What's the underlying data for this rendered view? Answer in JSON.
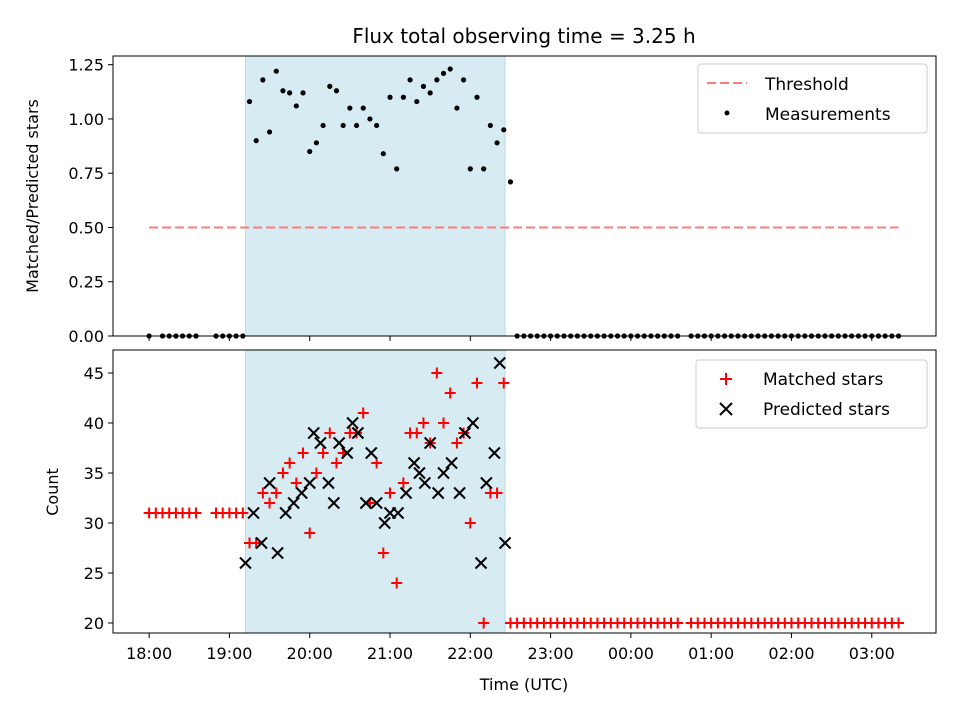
{
  "chart_data": [
    {
      "type": "scatter",
      "title": "Flux total observing time = 3.25 h",
      "xlabel": "",
      "ylabel": "Matched/Predicted stars",
      "xlim": [
        "17:33",
        "03:48"
      ],
      "ylim": [
        0,
        1.29
      ],
      "yticks": [
        "0.00",
        "0.25",
        "0.50",
        "0.75",
        "1.00",
        "1.25"
      ],
      "shaded_interval": [
        "19:12",
        "22:26"
      ],
      "threshold": {
        "label": "Threshold",
        "value": 0.5,
        "x_range": [
          "18:00",
          "03:20"
        ],
        "color": "#ff7b7b"
      },
      "legend_position": "upper right",
      "series": [
        {
          "name": "Measurements",
          "color": "#000000",
          "marker": "dot",
          "points": [
            [
              "18:00",
              0
            ],
            [
              "18:10",
              0
            ],
            [
              "18:15",
              0
            ],
            [
              "18:20",
              0
            ],
            [
              "18:25",
              0
            ],
            [
              "18:30",
              0
            ],
            [
              "18:35",
              0
            ],
            [
              "18:50",
              0
            ],
            [
              "18:55",
              0
            ],
            [
              "19:00",
              0
            ],
            [
              "19:05",
              0
            ],
            [
              "19:10",
              0
            ],
            [
              "19:15",
              1.08
            ],
            [
              "19:20",
              0.9
            ],
            [
              "19:25",
              1.18
            ],
            [
              "19:30",
              0.94
            ],
            [
              "19:35",
              1.22
            ],
            [
              "19:40",
              1.13
            ],
            [
              "19:45",
              1.12
            ],
            [
              "19:50",
              1.06
            ],
            [
              "19:55",
              1.12
            ],
            [
              "20:00",
              0.85
            ],
            [
              "20:05",
              0.89
            ],
            [
              "20:10",
              0.97
            ],
            [
              "20:15",
              1.15
            ],
            [
              "20:20",
              1.13
            ],
            [
              "20:25",
              0.97
            ],
            [
              "20:30",
              1.05
            ],
            [
              "20:35",
              0.97
            ],
            [
              "20:40",
              1.05
            ],
            [
              "20:45",
              1.0
            ],
            [
              "20:50",
              0.97
            ],
            [
              "20:55",
              0.84
            ],
            [
              "21:00",
              1.1
            ],
            [
              "21:05",
              0.77
            ],
            [
              "21:10",
              1.1
            ],
            [
              "21:15",
              1.18
            ],
            [
              "21:20",
              1.08
            ],
            [
              "21:25",
              1.15
            ],
            [
              "21:30",
              1.12
            ],
            [
              "21:35",
              1.18
            ],
            [
              "21:40",
              1.21
            ],
            [
              "21:45",
              1.23
            ],
            [
              "21:50",
              1.05
            ],
            [
              "21:55",
              1.18
            ],
            [
              "22:00",
              0.77
            ],
            [
              "22:05",
              1.1
            ],
            [
              "22:10",
              0.77
            ],
            [
              "22:15",
              0.97
            ],
            [
              "22:20",
              0.89
            ],
            [
              "22:25",
              0.95
            ],
            [
              "22:30",
              0.71
            ],
            [
              "22:35",
              0
            ],
            [
              "22:40",
              0
            ],
            [
              "22:45",
              0
            ],
            [
              "22:50",
              0
            ],
            [
              "22:55",
              0
            ],
            [
              "23:00",
              0
            ],
            [
              "23:05",
              0
            ],
            [
              "23:10",
              0
            ],
            [
              "23:15",
              0
            ],
            [
              "23:20",
              0
            ],
            [
              "23:25",
              0
            ],
            [
              "23:30",
              0
            ],
            [
              "23:35",
              0
            ],
            [
              "23:40",
              0
            ],
            [
              "23:45",
              0
            ],
            [
              "23:50",
              0
            ],
            [
              "23:55",
              0
            ],
            [
              "00:00",
              0
            ],
            [
              "00:05",
              0
            ],
            [
              "00:10",
              0
            ],
            [
              "00:15",
              0
            ],
            [
              "00:20",
              0
            ],
            [
              "00:25",
              0
            ],
            [
              "00:30",
              0
            ],
            [
              "00:35",
              0
            ],
            [
              "00:45",
              0
            ],
            [
              "00:50",
              0
            ],
            [
              "00:55",
              0
            ],
            [
              "01:00",
              0
            ],
            [
              "01:05",
              0
            ],
            [
              "01:10",
              0
            ],
            [
              "01:15",
              0
            ],
            [
              "01:20",
              0
            ],
            [
              "01:25",
              0
            ],
            [
              "01:30",
              0
            ],
            [
              "01:35",
              0
            ],
            [
              "01:40",
              0
            ],
            [
              "01:45",
              0
            ],
            [
              "01:50",
              0
            ],
            [
              "01:55",
              0
            ],
            [
              "02:00",
              0
            ],
            [
              "02:05",
              0
            ],
            [
              "02:10",
              0
            ],
            [
              "02:15",
              0
            ],
            [
              "02:20",
              0
            ],
            [
              "02:25",
              0
            ],
            [
              "02:30",
              0
            ],
            [
              "02:35",
              0
            ],
            [
              "02:40",
              0
            ],
            [
              "02:45",
              0
            ],
            [
              "02:50",
              0
            ],
            [
              "02:55",
              0
            ],
            [
              "03:00",
              0
            ],
            [
              "03:05",
              0
            ],
            [
              "03:10",
              0
            ],
            [
              "03:15",
              0
            ],
            [
              "03:20",
              0
            ]
          ]
        }
      ]
    },
    {
      "type": "scatter",
      "title": "",
      "xlabel": "Time (UTC)",
      "ylabel": "Count",
      "xlim": [
        "17:33",
        "03:48"
      ],
      "ylim": [
        19,
        47.3
      ],
      "yticks": [
        "20",
        "25",
        "30",
        "35",
        "40",
        "45"
      ],
      "xticks": [
        "18:00",
        "19:00",
        "20:00",
        "21:00",
        "22:00",
        "23:00",
        "00:00",
        "01:00",
        "02:00",
        "03:00"
      ],
      "shaded_interval": [
        "19:12",
        "22:26"
      ],
      "legend_position": "upper right",
      "series": [
        {
          "name": "Matched stars",
          "color": "#ff0000",
          "marker": "plus",
          "points": [
            [
              "18:00",
              31
            ],
            [
              "18:05",
              31
            ],
            [
              "18:10",
              31
            ],
            [
              "18:15",
              31
            ],
            [
              "18:20",
              31
            ],
            [
              "18:25",
              31
            ],
            [
              "18:30",
              31
            ],
            [
              "18:35",
              31
            ],
            [
              "18:50",
              31
            ],
            [
              "18:55",
              31
            ],
            [
              "19:00",
              31
            ],
            [
              "19:05",
              31
            ],
            [
              "19:10",
              31
            ],
            [
              "19:15",
              28
            ],
            [
              "19:20",
              28
            ],
            [
              "19:25",
              33
            ],
            [
              "19:30",
              32
            ],
            [
              "19:35",
              33
            ],
            [
              "19:40",
              35
            ],
            [
              "19:45",
              36
            ],
            [
              "19:50",
              34
            ],
            [
              "19:55",
              37
            ],
            [
              "20:00",
              29
            ],
            [
              "20:05",
              35
            ],
            [
              "20:10",
              37
            ],
            [
              "20:15",
              39
            ],
            [
              "20:20",
              36
            ],
            [
              "20:25",
              37
            ],
            [
              "20:30",
              39
            ],
            [
              "20:35",
              39
            ],
            [
              "20:40",
              41
            ],
            [
              "20:45",
              32
            ],
            [
              "20:50",
              36
            ],
            [
              "20:55",
              27
            ],
            [
              "21:00",
              33
            ],
            [
              "21:05",
              24
            ],
            [
              "21:10",
              34
            ],
            [
              "21:15",
              39
            ],
            [
              "21:20",
              39
            ],
            [
              "21:25",
              40
            ],
            [
              "21:30",
              38
            ],
            [
              "21:35",
              45
            ],
            [
              "21:40",
              40
            ],
            [
              "21:45",
              43
            ],
            [
              "21:50",
              38
            ],
            [
              "21:55",
              39
            ],
            [
              "22:00",
              30
            ],
            [
              "22:05",
              44
            ],
            [
              "22:10",
              20
            ],
            [
              "22:15",
              33
            ],
            [
              "22:20",
              33
            ],
            [
              "22:25",
              44
            ],
            [
              "22:30",
              20
            ],
            [
              "22:35",
              20
            ],
            [
              "22:40",
              20
            ],
            [
              "22:45",
              20
            ],
            [
              "22:50",
              20
            ],
            [
              "22:55",
              20
            ],
            [
              "23:00",
              20
            ],
            [
              "23:05",
              20
            ],
            [
              "23:10",
              20
            ],
            [
              "23:15",
              20
            ],
            [
              "23:20",
              20
            ],
            [
              "23:25",
              20
            ],
            [
              "23:30",
              20
            ],
            [
              "23:35",
              20
            ],
            [
              "23:40",
              20
            ],
            [
              "23:45",
              20
            ],
            [
              "23:50",
              20
            ],
            [
              "23:55",
              20
            ],
            [
              "00:00",
              20
            ],
            [
              "00:05",
              20
            ],
            [
              "00:10",
              20
            ],
            [
              "00:15",
              20
            ],
            [
              "00:20",
              20
            ],
            [
              "00:25",
              20
            ],
            [
              "00:30",
              20
            ],
            [
              "00:35",
              20
            ],
            [
              "00:45",
              20
            ],
            [
              "00:50",
              20
            ],
            [
              "00:55",
              20
            ],
            [
              "01:00",
              20
            ],
            [
              "01:05",
              20
            ],
            [
              "01:10",
              20
            ],
            [
              "01:15",
              20
            ],
            [
              "01:20",
              20
            ],
            [
              "01:25",
              20
            ],
            [
              "01:30",
              20
            ],
            [
              "01:35",
              20
            ],
            [
              "01:40",
              20
            ],
            [
              "01:45",
              20
            ],
            [
              "01:50",
              20
            ],
            [
              "01:55",
              20
            ],
            [
              "02:00",
              20
            ],
            [
              "02:05",
              20
            ],
            [
              "02:10",
              20
            ],
            [
              "02:15",
              20
            ],
            [
              "02:20",
              20
            ],
            [
              "02:25",
              20
            ],
            [
              "02:30",
              20
            ],
            [
              "02:35",
              20
            ],
            [
              "02:40",
              20
            ],
            [
              "02:45",
              20
            ],
            [
              "02:50",
              20
            ],
            [
              "02:55",
              20
            ],
            [
              "03:00",
              20
            ],
            [
              "03:05",
              20
            ],
            [
              "03:10",
              20
            ],
            [
              "03:15",
              20
            ],
            [
              "03:20",
              20
            ]
          ]
        },
        {
          "name": "Predicted stars",
          "color": "#000000",
          "marker": "x",
          "points": [
            [
              "19:12",
              26
            ],
            [
              "19:18",
              31
            ],
            [
              "19:24",
              28
            ],
            [
              "19:30",
              34
            ],
            [
              "19:36",
              27
            ],
            [
              "19:42",
              31
            ],
            [
              "19:48",
              32
            ],
            [
              "19:54",
              33
            ],
            [
              "20:00",
              34
            ],
            [
              "20:03",
              39
            ],
            [
              "20:08",
              38
            ],
            [
              "20:14",
              34
            ],
            [
              "20:18",
              32
            ],
            [
              "20:22",
              38
            ],
            [
              "20:28",
              37
            ],
            [
              "20:32",
              40
            ],
            [
              "20:36",
              39
            ],
            [
              "20:42",
              32
            ],
            [
              "20:46",
              37
            ],
            [
              "20:50",
              32
            ],
            [
              "20:56",
              30
            ],
            [
              "21:00",
              31
            ],
            [
              "21:06",
              31
            ],
            [
              "21:12",
              33
            ],
            [
              "21:18",
              36
            ],
            [
              "21:22",
              35
            ],
            [
              "21:26",
              34
            ],
            [
              "21:30",
              38
            ],
            [
              "21:36",
              33
            ],
            [
              "21:40",
              35
            ],
            [
              "21:46",
              36
            ],
            [
              "21:52",
              33
            ],
            [
              "21:56",
              39
            ],
            [
              "22:02",
              40
            ],
            [
              "22:08",
              26
            ],
            [
              "22:12",
              34
            ],
            [
              "22:18",
              37
            ],
            [
              "22:22",
              46
            ],
            [
              "22:26",
              28
            ]
          ]
        }
      ]
    }
  ]
}
